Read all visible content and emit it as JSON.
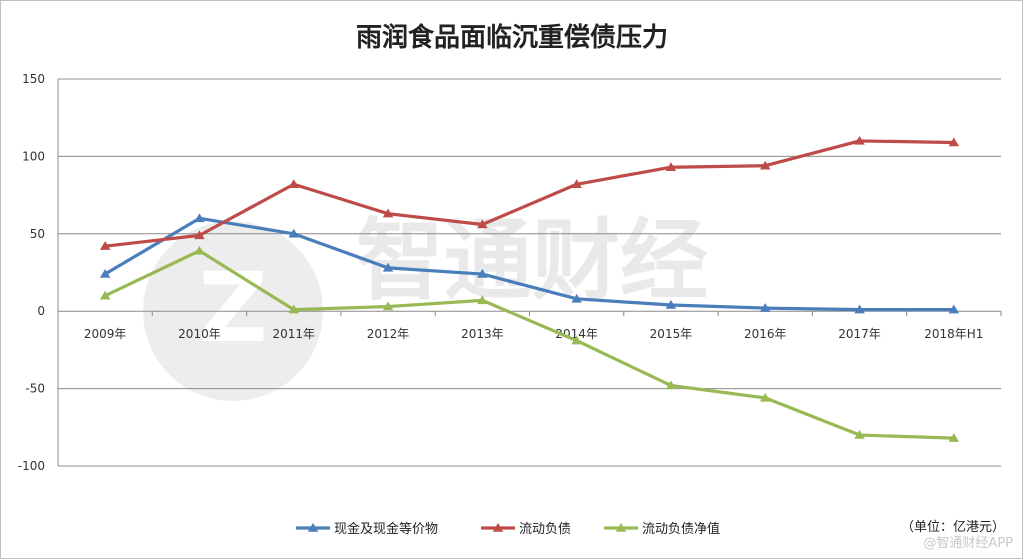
{
  "chart_data": {
    "type": "line",
    "title": "雨润食品面临沉重偿债压力",
    "categories": [
      "2009年",
      "2010年",
      "2011年",
      "2012年",
      "2013年",
      "2014年",
      "2015年",
      "2016年",
      "2017年",
      "2018年H1"
    ],
    "ylim": [
      -100,
      150
    ],
    "yticks": [
      150,
      100,
      50,
      0,
      -50,
      -100
    ],
    "grid": true,
    "legend_position": "bottom",
    "unit_note": "（单位：亿港元）",
    "series": [
      {
        "name": "现金及现金等价物",
        "color": "#4a7ebb",
        "values": [
          24,
          60,
          50,
          28,
          24,
          8,
          4,
          2,
          1,
          1
        ]
      },
      {
        "name": "流动负债",
        "color": "#be4b48",
        "values": [
          42,
          49,
          82,
          63,
          56,
          82,
          93,
          94,
          110,
          109
        ]
      },
      {
        "name": "流动负债净值",
        "color": "#98b954",
        "values": [
          10,
          39,
          1,
          3,
          7,
          -19,
          -48,
          -56,
          -80,
          -82
        ]
      }
    ]
  },
  "watermark": {
    "text": "智通财经",
    "corner_text": "@智通财经APP"
  }
}
